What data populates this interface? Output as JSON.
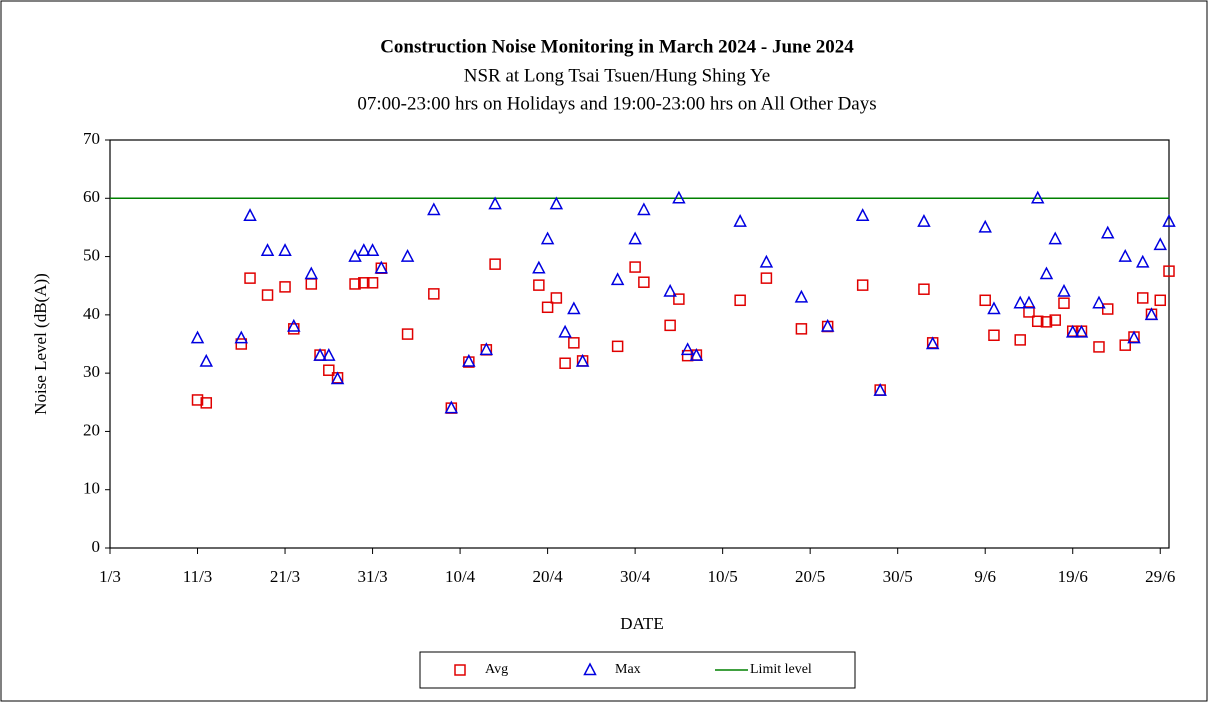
{
  "chart_data": {
    "type": "scatter",
    "title": "Construction Noise Monitoring in March 2024 - June 2024",
    "subtitle": [
      "NSR at Long Tsai Tsuen/Hung Shing Ye",
      "07:00-23:00  hrs on Holidays and 19:00-23:00  hrs on All Other Days"
    ],
    "x_label": "DATE",
    "y_label": "Noise Level (dB(A))",
    "x": [
      "11/3",
      "12/3",
      "16/3",
      "17/3",
      "19/3",
      "21/3",
      "22/3",
      "24/3",
      "25/3",
      "26/3",
      "27/3",
      "29/3",
      "30/3",
      "31/3",
      "1/4",
      "4/4",
      "7/4",
      "9/4",
      "11/4",
      "13/4",
      "14/4",
      "19/4",
      "20/4",
      "21/4",
      "22/4",
      "23/4",
      "24/4",
      "28/4",
      "30/4",
      "1/5",
      "4/5",
      "5/5",
      "6/5",
      "7/5",
      "12/5",
      "15/5",
      "19/5",
      "22/5",
      "26/5",
      "28/5",
      "2/6",
      "3/6",
      "9/6",
      "10/6",
      "13/6",
      "14/6",
      "15/6",
      "16/6",
      "17/6",
      "18/6",
      "19/6",
      "20/6",
      "22/6",
      "23/6",
      "25/6",
      "26/6",
      "27/6",
      "28/6",
      "29/6",
      "30/6"
    ],
    "series": [
      {
        "name": "Avg",
        "color": "#e00000",
        "marker": "square",
        "values": [
          25.4,
          24.9,
          35,
          46.3,
          43.4,
          44.8,
          37.6,
          45.3,
          33.1,
          30.5,
          29.2,
          45.3,
          45.5,
          45.5,
          48,
          36.7,
          43.6,
          24,
          31.9,
          34,
          48.7,
          45.1,
          41.3,
          42.9,
          31.7,
          35.2,
          32.1,
          34.6,
          48.2,
          45.6,
          38.2,
          42.7,
          33,
          33.1,
          42.5,
          46.3,
          37.6,
          38,
          45.1,
          27.1,
          44.4,
          35.2,
          42.5,
          36.5,
          35.7,
          40.5,
          38.9,
          38.8,
          39.1,
          42,
          37.2,
          37.2,
          34.5,
          41,
          34.8,
          36.2,
          42.9,
          40.1,
          42.5,
          47.5
        ]
      },
      {
        "name": "Max",
        "color": "#0000e0",
        "marker": "triangle",
        "values": [
          36,
          32,
          36,
          57,
          51,
          51,
          38,
          47,
          33,
          33,
          29,
          50,
          51,
          51,
          48,
          50,
          58,
          24,
          32,
          34,
          59,
          48,
          53,
          59,
          37,
          41,
          32,
          46,
          53,
          58,
          44,
          60,
          34,
          33,
          56,
          49,
          43,
          38,
          57,
          27,
          56,
          35,
          55,
          41,
          42,
          42,
          60,
          47,
          53,
          44,
          37,
          37,
          42,
          54,
          50,
          36,
          49,
          40,
          52,
          56
        ]
      }
    ],
    "limit": {
      "name": "Limit level",
      "value": 60,
      "color": "#008000"
    },
    "xlim": [
      "1/3",
      "30/6"
    ],
    "xticks": [
      "1/3",
      "11/3",
      "21/3",
      "31/3",
      "10/4",
      "20/4",
      "30/4",
      "10/5",
      "20/5",
      "30/5",
      "9/6",
      "19/6",
      "29/6"
    ],
    "ylim": [
      0,
      70
    ],
    "yticks": [
      0,
      10,
      20,
      30,
      40,
      50,
      60,
      70
    ],
    "grid": false,
    "legend": "bottom"
  }
}
